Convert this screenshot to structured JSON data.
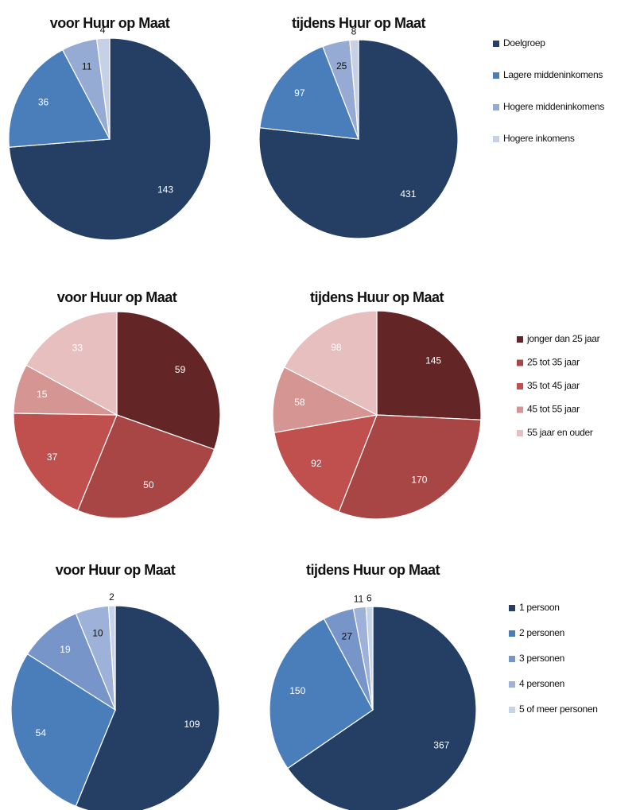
{
  "chart_data": [
    {
      "type": "pie",
      "categories": [
        "Doelgroep",
        "Lagere middeninkomens",
        "Hogere middeninkomens",
        "Hogere inkomens"
      ],
      "colors": [
        "#243f63",
        "#4a7ebb",
        "#95abd3",
        "#c6d1e6"
      ],
      "series": [
        {
          "name": "voor Huur op Maat",
          "values": [
            143,
            36,
            11,
            4
          ]
        },
        {
          "name": "tijdens Huur op Maat",
          "values": [
            431,
            97,
            25,
            8
          ]
        }
      ]
    },
    {
      "type": "pie",
      "categories": [
        "jonger dan 25 jaar",
        "25 tot 35 jaar",
        "35 tot 45 jaar",
        "45 tot 55 jaar",
        "55 jaar en ouder"
      ],
      "colors": [
        "#632526",
        "#a84545",
        "#c0504d",
        "#d49593",
        "#e6bfbe"
      ],
      "series": [
        {
          "name": "voor Huur op Maat",
          "values": [
            59,
            50,
            37,
            15,
            33
          ]
        },
        {
          "name": "tijdens Huur op Maat",
          "values": [
            145,
            170,
            92,
            58,
            98
          ]
        }
      ]
    },
    {
      "type": "pie",
      "categories": [
        "1 persoon",
        "2 personen",
        "3 personen",
        "4 personen",
        "5 of meer personen"
      ],
      "colors": [
        "#243f63",
        "#4a7ebb",
        "#7795c8",
        "#9eb1d8",
        "#c7d3e8"
      ],
      "series": [
        {
          "name": "voor Huur op Maat",
          "values": [
            109,
            54,
            19,
            10,
            2
          ]
        },
        {
          "name": "tijdens Huur op Maat",
          "values": [
            367,
            150,
            27,
            11,
            6
          ]
        }
      ]
    }
  ]
}
